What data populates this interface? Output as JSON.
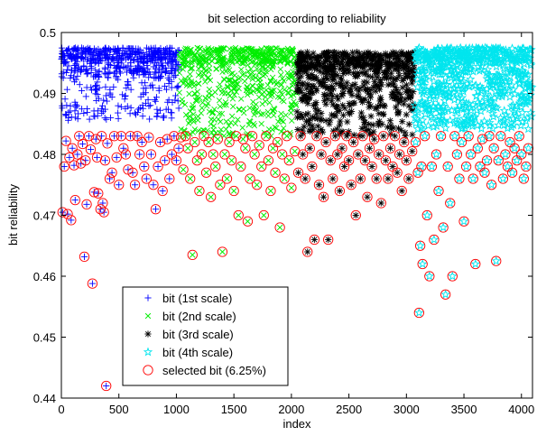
{
  "chart_data": {
    "type": "scatter",
    "title": "bit selection according to reliability",
    "xlabel": "index",
    "ylabel": "bit reliability",
    "xlim": [
      0,
      4096
    ],
    "ylim": [
      0.44,
      0.5
    ],
    "xticks": [
      0,
      500,
      1000,
      1500,
      2000,
      2500,
      3000,
      3500,
      4000
    ],
    "yticks": [
      0.44,
      0.45,
      0.46,
      0.47,
      0.48,
      0.49,
      0.5
    ],
    "xtick_labels": [
      "0",
      "500",
      "1000",
      "1500",
      "2000",
      "2500",
      "3000",
      "3500",
      "4000"
    ],
    "ytick_labels": [
      "0.44",
      "0.45",
      "0.46",
      "0.47",
      "0.48",
      "0.49",
      "0.5"
    ],
    "grid": false,
    "legend_position": "bottom-left",
    "series": [
      {
        "name": "bit (1st scale)",
        "marker": "plus",
        "color": "#0000ff",
        "x_range": [
          0,
          1023
        ],
        "density_profile": [
          [
            0.4955,
            0.4975,
            0.45
          ],
          [
            0.4925,
            0.4955,
            0.3
          ],
          [
            0.4855,
            0.4925,
            0.25
          ]
        ]
      },
      {
        "name": "bit (2nd scale)",
        "marker": "x",
        "color": "#00ee00",
        "x_range": [
          1024,
          2047
        ],
        "density_profile": [
          [
            0.495,
            0.4975,
            0.45
          ],
          [
            0.49,
            0.495,
            0.32
          ],
          [
            0.483,
            0.49,
            0.23
          ]
        ]
      },
      {
        "name": "bit (3rd scale)",
        "marker": "asterisk",
        "color": "#000000",
        "x_range": [
          2048,
          3071
        ],
        "density_profile": [
          [
            0.494,
            0.4968,
            0.45
          ],
          [
            0.489,
            0.494,
            0.32
          ],
          [
            0.483,
            0.489,
            0.23
          ]
        ]
      },
      {
        "name": "bit (4th scale)",
        "marker": "star",
        "color": "#00e5ee",
        "x_range": [
          3072,
          4095
        ],
        "density_profile": [
          [
            0.495,
            0.4975,
            0.4
          ],
          [
            0.4895,
            0.495,
            0.35
          ],
          [
            0.484,
            0.4895,
            0.25
          ]
        ]
      },
      {
        "name": "selected bit (6.25%)",
        "marker": "circle",
        "color": "#ff0000",
        "points": [
          [
            10,
            0.4705
          ],
          [
            25,
            0.478
          ],
          [
            40,
            0.4822
          ],
          [
            55,
            0.4702
          ],
          [
            70,
            0.4795
          ],
          [
            85,
            0.4692
          ],
          [
            95,
            0.481
          ],
          [
            110,
            0.4782
          ],
          [
            120,
            0.4725
          ],
          [
            140,
            0.48
          ],
          [
            155,
            0.483
          ],
          [
            170,
            0.4785
          ],
          [
            185,
            0.4817
          ],
          [
            200,
            0.4632
          ],
          [
            210,
            0.479
          ],
          [
            220,
            0.4718
          ],
          [
            240,
            0.483
          ],
          [
            255,
            0.4808
          ],
          [
            270,
            0.4588
          ],
          [
            285,
            0.4738
          ],
          [
            300,
            0.4825
          ],
          [
            310,
            0.4795
          ],
          [
            320,
            0.4736
          ],
          [
            340,
            0.471
          ],
          [
            350,
            0.483
          ],
          [
            360,
            0.472
          ],
          [
            370,
            0.4705
          ],
          [
            380,
            0.479
          ],
          [
            390,
            0.442
          ],
          [
            400,
            0.4818
          ],
          [
            420,
            0.476
          ],
          [
            440,
            0.477
          ],
          [
            460,
            0.483
          ],
          [
            480,
            0.4795
          ],
          [
            500,
            0.475
          ],
          [
            520,
            0.483
          ],
          [
            540,
            0.481
          ],
          [
            560,
            0.48
          ],
          [
            580,
            0.4775
          ],
          [
            600,
            0.483
          ],
          [
            620,
            0.477
          ],
          [
            640,
            0.475
          ],
          [
            660,
            0.483
          ],
          [
            680,
            0.48
          ],
          [
            700,
            0.482
          ],
          [
            720,
            0.478
          ],
          [
            740,
            0.476
          ],
          [
            760,
            0.4828
          ],
          [
            780,
            0.48
          ],
          [
            800,
            0.475
          ],
          [
            820,
            0.471
          ],
          [
            840,
            0.478
          ],
          [
            860,
            0.482
          ],
          [
            880,
            0.474
          ],
          [
            900,
            0.479
          ],
          [
            920,
            0.4825
          ],
          [
            940,
            0.476
          ],
          [
            960,
            0.48
          ],
          [
            980,
            0.483
          ],
          [
            1000,
            0.479
          ],
          [
            1020,
            0.481
          ],
          [
            1040,
            0.4828
          ],
          [
            1060,
            0.4775
          ],
          [
            1080,
            0.483
          ],
          [
            1100,
            0.481
          ],
          [
            1120,
            0.476
          ],
          [
            1140,
            0.4635
          ],
          [
            1160,
            0.482
          ],
          [
            1180,
            0.479
          ],
          [
            1200,
            0.474
          ],
          [
            1220,
            0.48
          ],
          [
            1240,
            0.483
          ],
          [
            1260,
            0.477
          ],
          [
            1280,
            0.482
          ],
          [
            1300,
            0.473
          ],
          [
            1320,
            0.48
          ],
          [
            1340,
            0.478
          ],
          [
            1360,
            0.4825
          ],
          [
            1380,
            0.475
          ],
          [
            1400,
            0.464
          ],
          [
            1420,
            0.48
          ],
          [
            1440,
            0.476
          ],
          [
            1460,
            0.482
          ],
          [
            1480,
            0.479
          ],
          [
            1500,
            0.474
          ],
          [
            1520,
            0.483
          ],
          [
            1540,
            0.47
          ],
          [
            1560,
            0.478
          ],
          [
            1580,
            0.4825
          ],
          [
            1600,
            0.481
          ],
          [
            1620,
            0.469
          ],
          [
            1640,
            0.476
          ],
          [
            1660,
            0.483
          ],
          [
            1680,
            0.48
          ],
          [
            1700,
            0.475
          ],
          [
            1720,
            0.4815
          ],
          [
            1740,
            0.478
          ],
          [
            1760,
            0.47
          ],
          [
            1780,
            0.483
          ],
          [
            1800,
            0.479
          ],
          [
            1820,
            0.474
          ],
          [
            1840,
            0.481
          ],
          [
            1860,
            0.477
          ],
          [
            1880,
            0.482
          ],
          [
            1900,
            0.468
          ],
          [
            1920,
            0.48
          ],
          [
            1940,
            0.476
          ],
          [
            1960,
            0.483
          ],
          [
            1980,
            0.479
          ],
          [
            2000,
            0.4745
          ],
          [
            2030,
            0.4805
          ],
          [
            2060,
            0.477
          ],
          [
            2080,
            0.483
          ],
          [
            2100,
            0.48
          ],
          [
            2120,
            0.476
          ],
          [
            2140,
            0.464
          ],
          [
            2160,
            0.481
          ],
          [
            2180,
            0.478
          ],
          [
            2200,
            0.466
          ],
          [
            2220,
            0.483
          ],
          [
            2240,
            0.475
          ],
          [
            2260,
            0.48
          ],
          [
            2280,
            0.473
          ],
          [
            2300,
            0.482
          ],
          [
            2320,
            0.466
          ],
          [
            2340,
            0.479
          ],
          [
            2360,
            0.476
          ],
          [
            2380,
            0.483
          ],
          [
            2400,
            0.48
          ],
          [
            2420,
            0.474
          ],
          [
            2440,
            0.481
          ],
          [
            2460,
            0.478
          ],
          [
            2480,
            0.483
          ],
          [
            2500,
            0.479
          ],
          [
            2520,
            0.475
          ],
          [
            2540,
            0.482
          ],
          [
            2560,
            0.47
          ],
          [
            2580,
            0.48
          ],
          [
            2600,
            0.476
          ],
          [
            2620,
            0.483
          ],
          [
            2640,
            0.479
          ],
          [
            2660,
            0.473
          ],
          [
            2680,
            0.481
          ],
          [
            2700,
            0.478
          ],
          [
            2720,
            0.4825
          ],
          [
            2740,
            0.476
          ],
          [
            2760,
            0.48
          ],
          [
            2780,
            0.472
          ],
          [
            2800,
            0.483
          ],
          [
            2820,
            0.479
          ],
          [
            2840,
            0.476
          ],
          [
            2860,
            0.481
          ],
          [
            2880,
            0.478
          ],
          [
            2900,
            0.483
          ],
          [
            2920,
            0.477
          ],
          [
            2940,
            0.48
          ],
          [
            2960,
            0.474
          ],
          [
            2980,
            0.482
          ],
          [
            3000,
            0.479
          ],
          [
            3020,
            0.476
          ],
          [
            3050,
            0.4805
          ],
          [
            3080,
            0.482
          ],
          [
            3100,
            0.477
          ],
          [
            3110,
            0.454
          ],
          [
            3120,
            0.465
          ],
          [
            3130,
            0.478
          ],
          [
            3140,
            0.462
          ],
          [
            3160,
            0.483
          ],
          [
            3180,
            0.47
          ],
          [
            3200,
            0.46
          ],
          [
            3220,
            0.478
          ],
          [
            3240,
            0.466
          ],
          [
            3260,
            0.48
          ],
          [
            3280,
            0.474
          ],
          [
            3300,
            0.483
          ],
          [
            3320,
            0.468
          ],
          [
            3340,
            0.457
          ],
          [
            3360,
            0.478
          ],
          [
            3380,
            0.472
          ],
          [
            3400,
            0.46
          ],
          [
            3420,
            0.483
          ],
          [
            3440,
            0.48
          ],
          [
            3460,
            0.476
          ],
          [
            3480,
            0.482
          ],
          [
            3500,
            0.469
          ],
          [
            3520,
            0.478
          ],
          [
            3540,
            0.483
          ],
          [
            3560,
            0.48
          ],
          [
            3580,
            0.476
          ],
          [
            3600,
            0.462
          ],
          [
            3620,
            0.481
          ],
          [
            3640,
            0.478
          ],
          [
            3660,
            0.4825
          ],
          [
            3680,
            0.477
          ],
          [
            3700,
            0.479
          ],
          [
            3720,
            0.483
          ],
          [
            3740,
            0.475
          ],
          [
            3760,
            0.481
          ],
          [
            3780,
            0.4625
          ],
          [
            3800,
            0.479
          ],
          [
            3820,
            0.483
          ],
          [
            3840,
            0.476
          ],
          [
            3860,
            0.48
          ],
          [
            3880,
            0.478
          ],
          [
            3900,
            0.482
          ],
          [
            3920,
            0.477
          ],
          [
            3940,
            0.481
          ],
          [
            3960,
            0.479
          ],
          [
            3980,
            0.483
          ],
          [
            4000,
            0.48
          ],
          [
            4020,
            0.476
          ],
          [
            4040,
            0.478
          ],
          [
            4060,
            0.481
          ]
        ]
      }
    ]
  }
}
